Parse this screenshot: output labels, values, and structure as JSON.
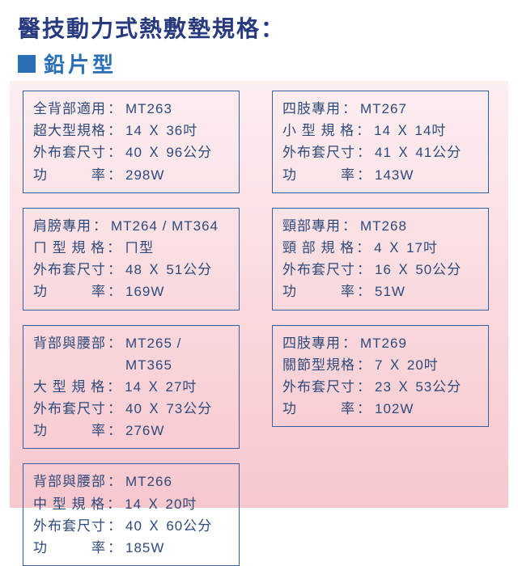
{
  "colors": {
    "title": "#27397f",
    "bullet": "#2a6fb5",
    "subtitle": "#2a6fb5",
    "card_border": "#3a5fa0",
    "text": "#2e4a7a"
  },
  "title": "醫技動力式熱敷墊規格：",
  "subtitle": "鉛片型",
  "left": [
    {
      "rows": [
        {
          "label": "全背部適用",
          "value": "MT263"
        },
        {
          "label": "超大型規格",
          "value": "14 Ｘ 36吋"
        },
        {
          "label": "外布套尺寸",
          "value": "40 Ｘ 96公分"
        },
        {
          "label": "功　　　率",
          "value": "298W"
        }
      ]
    },
    {
      "rows": [
        {
          "label": "肩膀專用",
          "value": "MT264 / MT364"
        },
        {
          "label": "ㄇ 型 規 格",
          "value": "ㄇ型"
        },
        {
          "label": "外布套尺寸",
          "value": "48 Ｘ 51公分"
        },
        {
          "label": "功　　　率",
          "value": "169W"
        }
      ]
    },
    {
      "rows": [
        {
          "label": "背部與腰部",
          "value": "MT265 / MT365"
        },
        {
          "label": "大 型 規 格",
          "value": "14 Ｘ 27吋"
        },
        {
          "label": "外布套尺寸",
          "value": "40 Ｘ 73公分"
        },
        {
          "label": "功　　　率",
          "value": "276W"
        }
      ]
    },
    {
      "rows": [
        {
          "label": "背部與腰部",
          "value": "MT266"
        },
        {
          "label": "中 型 規 格",
          "value": "14 Ｘ 20吋"
        },
        {
          "label": "外布套尺寸",
          "value": "40 Ｘ 60公分"
        },
        {
          "label": "功　　　率",
          "value": "185W"
        }
      ]
    }
  ],
  "right": [
    {
      "rows": [
        {
          "label": "四肢專用",
          "value": "MT267"
        },
        {
          "label": "小 型 規 格",
          "value": "14 Ｘ 14吋"
        },
        {
          "label": "外布套尺寸",
          "value": "41 Ｘ 41公分"
        },
        {
          "label": "功　　　率",
          "value": "143W"
        }
      ]
    },
    {
      "rows": [
        {
          "label": "頸部專用",
          "value": "MT268"
        },
        {
          "label": "頸 部 規 格",
          "value": "4 Ｘ 17吋"
        },
        {
          "label": "外布套尺寸",
          "value": "16 Ｘ 50公分"
        },
        {
          "label": "功　　　率",
          "value": "51W"
        }
      ]
    },
    {
      "rows": [
        {
          "label": "四肢專用",
          "value": "MT269"
        },
        {
          "label": "關節型規格",
          "value": "7 Ｘ 20吋"
        },
        {
          "label": "外布套尺寸",
          "value": "23 Ｘ 53公分"
        },
        {
          "label": "功　　　率",
          "value": "102W"
        }
      ]
    }
  ]
}
